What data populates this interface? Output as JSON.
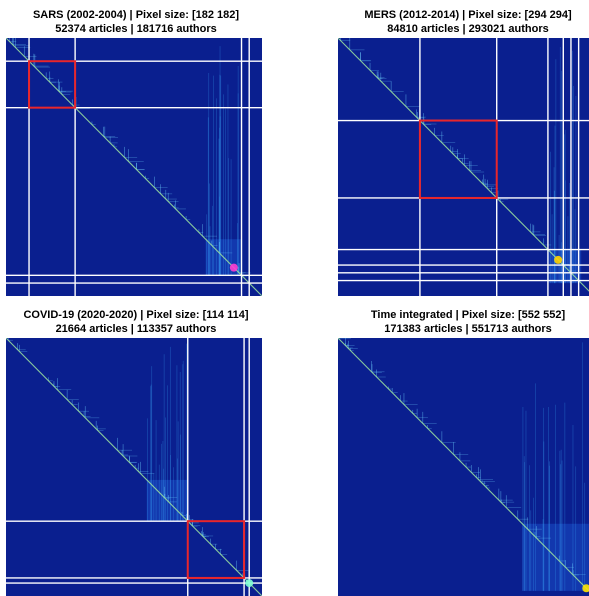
{
  "chart_data": [
    {
      "type": "heatmap",
      "title": "SARS (2002-2004) | Pixel size: [182 182]",
      "subtitle": "52374 articles | 181716 authors",
      "pixel_size": [
        182,
        182
      ],
      "boundaries": [
        0.09,
        0.27,
        0.92,
        0.95
      ],
      "highlight": [
        0.09,
        0.27
      ],
      "hotspot": 0.89,
      "dense_blocks": [
        [
          0.78,
          0.92
        ]
      ],
      "colors": {
        "bg": "#0a1f8f",
        "block": "#1a4cc8",
        "line": "#ffffff",
        "highlight": "#e8262b",
        "hot": "#ff3dd2"
      }
    },
    {
      "type": "heatmap",
      "title": "MERS (2012-2014) | Pixel size: [294 294]",
      "subtitle": "84810 articles | 293021 authors",
      "pixel_size": [
        294,
        294
      ],
      "boundaries": [
        0.32,
        0.62,
        0.82,
        0.88,
        0.91,
        0.94
      ],
      "highlight": [
        0.32,
        0.62
      ],
      "hotspot": 0.86,
      "dense_blocks": [
        [
          0.82,
          0.95
        ]
      ],
      "colors": {
        "bg": "#0a1f8f",
        "block": "#1a4cc8",
        "line": "#ffffff",
        "highlight": "#e8262b",
        "hot": "#ffd400"
      }
    },
    {
      "type": "heatmap",
      "title": "COVID-19 (2020-2020) | Pixel size: [114 114]",
      "subtitle": "21664 articles | 113357 authors",
      "pixel_size": [
        114,
        114
      ],
      "boundaries": [
        0.71,
        0.93,
        0.95
      ],
      "highlight": [
        0.71,
        0.93
      ],
      "hotspot": 0.95,
      "dense_blocks": [
        [
          0.55,
          0.71
        ]
      ],
      "colors": {
        "bg": "#0a1f8f",
        "block": "#1a4cc8",
        "line": "#ffffff",
        "highlight": "#e8262b",
        "hot": "#7fffd4"
      }
    },
    {
      "type": "heatmap",
      "title": "Time integrated | Pixel size: [552 552]",
      "subtitle": "171383 articles | 551713 authors",
      "pixel_size": [
        552,
        552
      ],
      "boundaries": [],
      "highlight": [],
      "hotspot": 0.97,
      "dense_blocks": [
        [
          0.72,
          0.98
        ]
      ],
      "colors": {
        "bg": "#0a1f8f",
        "block": "#1a4cc8",
        "line": "#ffffff",
        "highlight": "#e8262b",
        "hot": "#ffe600"
      }
    }
  ]
}
